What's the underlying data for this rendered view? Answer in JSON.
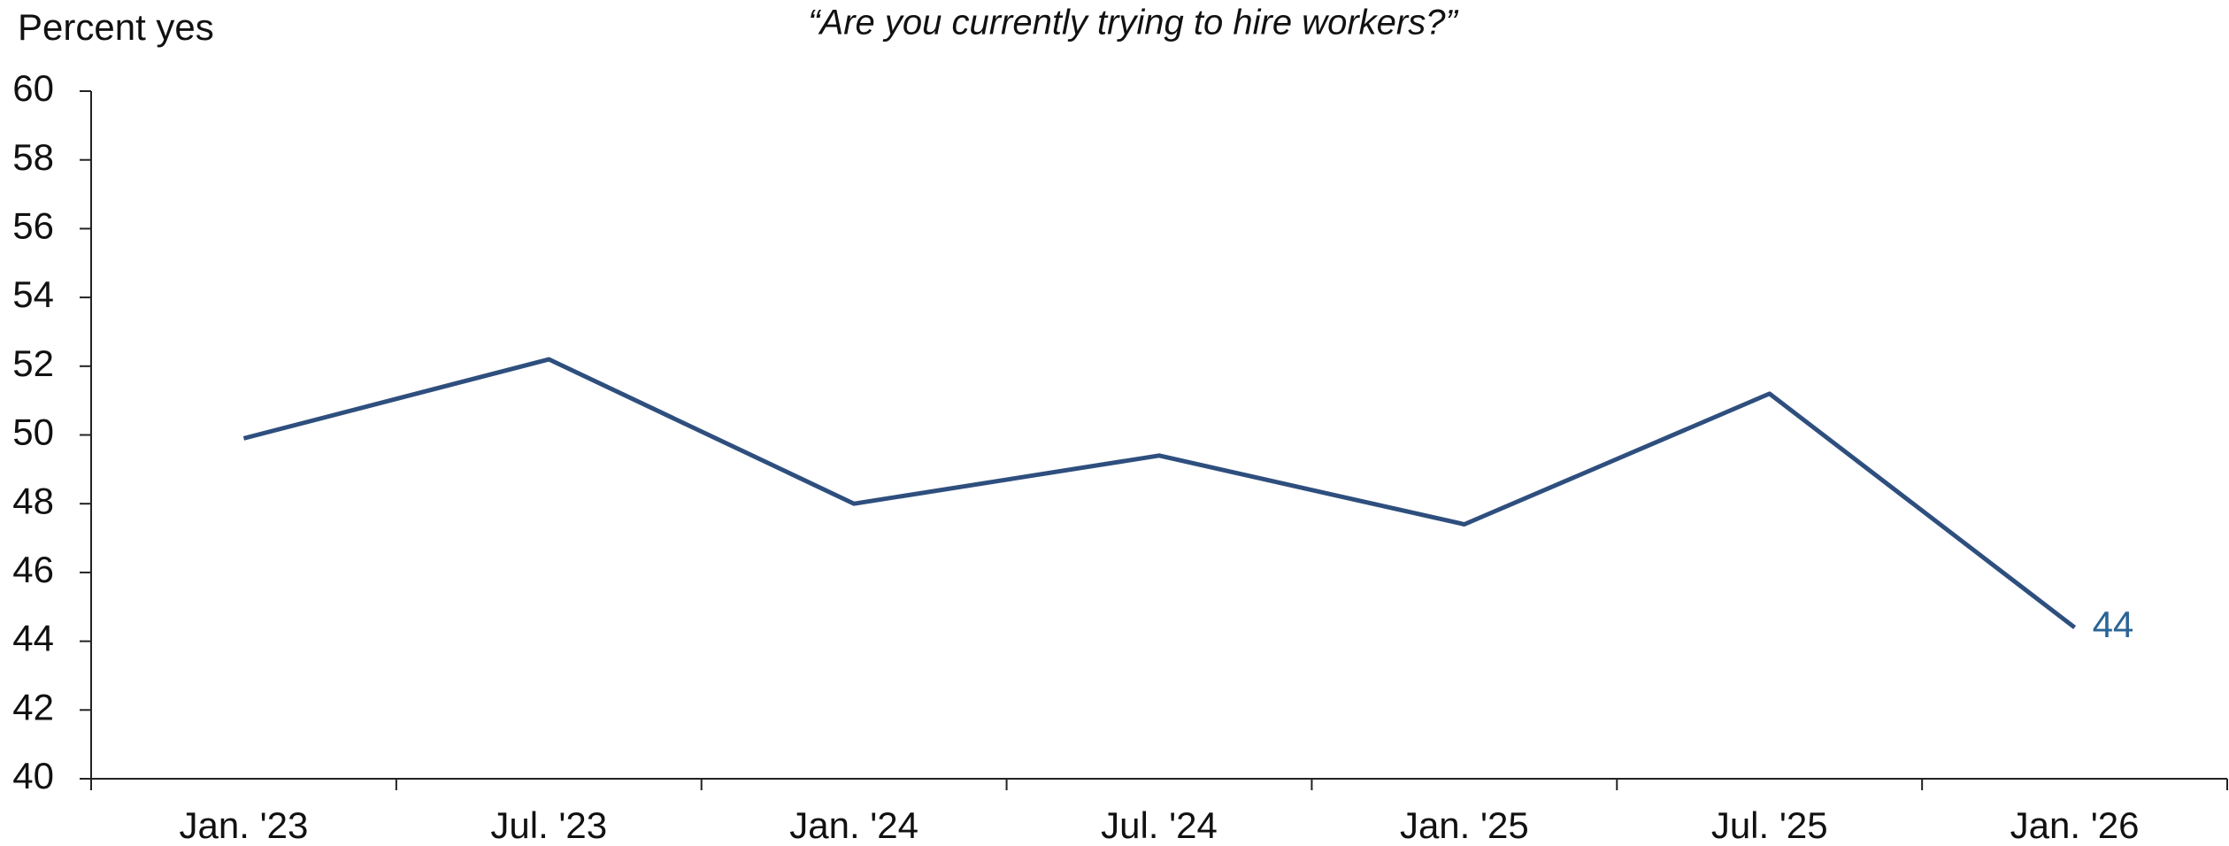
{
  "chart_data": {
    "type": "line",
    "title": "“Are you currently trying to hire workers?”",
    "y_label": "Percent yes",
    "categories": [
      "Jan. '23",
      "Jul. '23",
      "Jan. '24",
      "Jul. '24",
      "Jan. '25",
      "Jul. '25",
      "Jan. '26"
    ],
    "series": [
      {
        "name": "Percent yes",
        "color": "#2e4f7e",
        "values": [
          49.9,
          52.2,
          48.0,
          49.4,
          47.4,
          51.2,
          44.4
        ],
        "value_labels": [
          null,
          null,
          null,
          null,
          null,
          null,
          "44"
        ],
        "label_color": "#2a6496"
      }
    ],
    "ylim": [
      40,
      60
    ],
    "yticks": [
      40,
      42,
      44,
      46,
      48,
      50,
      52,
      54,
      56,
      58,
      60
    ],
    "grid": false
  }
}
